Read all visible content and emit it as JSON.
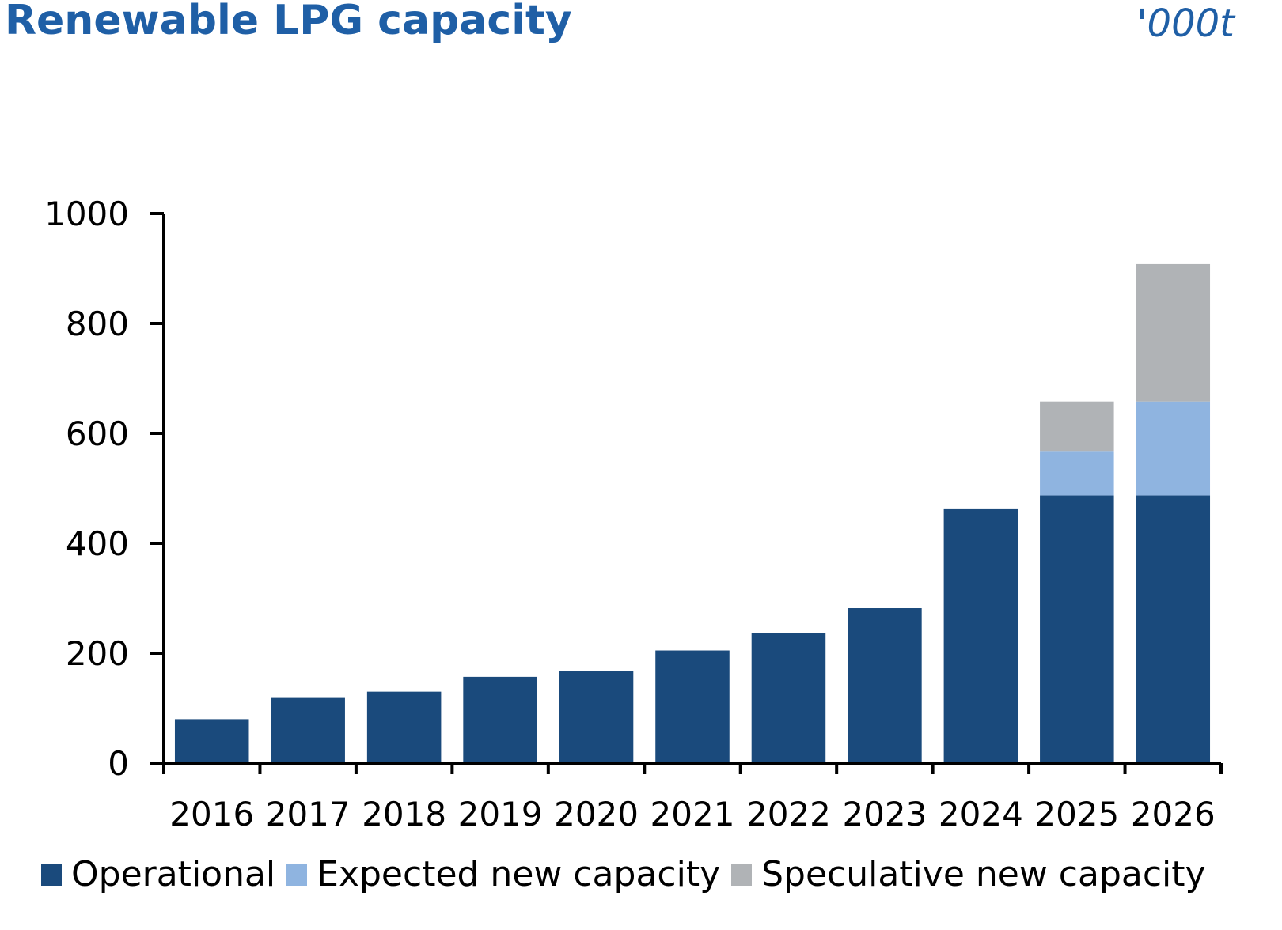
{
  "header": {
    "title": "Renewable LPG capacity",
    "unit": "'000t"
  },
  "colors": {
    "operational": "#1a4a7c",
    "expected": "#8fb4e0",
    "speculative": "#b0b3b6",
    "title": "#1f5fa6",
    "axis": "#000000"
  },
  "chart_data": {
    "type": "bar",
    "stacked": true,
    "title": "Renewable LPG capacity",
    "unit_label": "'000t",
    "xlabel": "",
    "ylabel": "",
    "ylim": [
      0,
      1000
    ],
    "yticks": [
      0,
      200,
      400,
      600,
      800,
      1000
    ],
    "grid": false,
    "legend_position": "bottom",
    "categories": [
      "2016",
      "2017",
      "2018",
      "2019",
      "2020",
      "2021",
      "2022",
      "2023",
      "2024",
      "2025",
      "2026"
    ],
    "series": [
      {
        "name": "Operational",
        "color": "#1a4a7c",
        "values": [
          80,
          120,
          130,
          157,
          167,
          205,
          236,
          282,
          462,
          487,
          487
        ]
      },
      {
        "name": "Expected new capacity",
        "color": "#8fb4e0",
        "values": [
          0,
          0,
          0,
          0,
          0,
          0,
          0,
          0,
          0,
          81,
          171
        ]
      },
      {
        "name": "Speculative new capacity",
        "color": "#b0b3b6",
        "values": [
          0,
          0,
          0,
          0,
          0,
          0,
          0,
          0,
          0,
          90,
          250
        ]
      }
    ]
  }
}
